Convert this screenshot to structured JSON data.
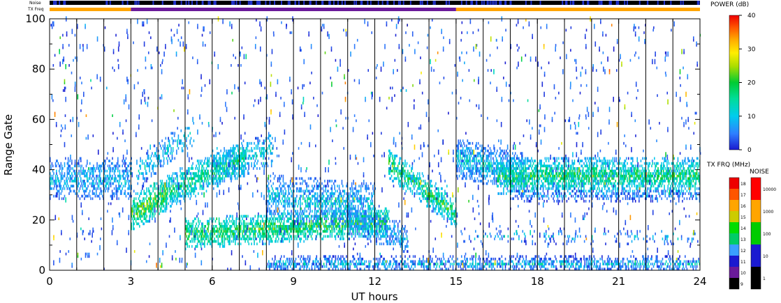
{
  "chart_data": {
    "type": "heatmap",
    "title": "",
    "xlabel": "UT hours",
    "ylabel": "Range Gate",
    "xlim": [
      0,
      24
    ],
    "ylim": [
      0,
      100
    ],
    "x_ticks": [
      0,
      3,
      6,
      9,
      12,
      15,
      18,
      21,
      24
    ],
    "y_ticks": [
      0,
      20,
      40,
      60,
      80,
      100
    ],
    "hour_lines": [
      1,
      2,
      3,
      4,
      5,
      6,
      7,
      8,
      9,
      10,
      11,
      12,
      13,
      14,
      15,
      16,
      17,
      18,
      19,
      20,
      21,
      22,
      23
    ],
    "header": {
      "noise_label": "Noise",
      "txfreq_label": "TX Freq",
      "txfreq_segments": [
        {
          "start": 0,
          "end": 3,
          "color": "#ffa500"
        },
        {
          "start": 3,
          "end": 15,
          "color": "#6a1b9a"
        },
        {
          "start": 15,
          "end": 24,
          "color": "#ffa500"
        }
      ]
    },
    "power_scale": {
      "label": "POWER (dB)",
      "ticks": [
        0,
        10,
        20,
        30,
        40
      ],
      "min": 0,
      "max": 40
    },
    "txfreq_scale": {
      "label": "TX FRQ (MHz)",
      "ticks": [
        9,
        10,
        11,
        12,
        13,
        14,
        15,
        16,
        17,
        18
      ],
      "colors": [
        "#000000",
        "#6a1b9a",
        "#1a1ad0",
        "#3aa0ff",
        "#00cc66",
        "#00dd00",
        "#cccc00",
        "#ffa500",
        "#ff5500",
        "#ee0000"
      ]
    },
    "noise_scale": {
      "label": "NOISE",
      "ticks": [
        "1",
        "10",
        "100",
        "1000",
        "10000"
      ],
      "colors": [
        "#000000",
        "#1a1ad0",
        "#00cc00",
        "#ffa500",
        "#ff0000"
      ]
    },
    "echo_bands": [
      {
        "t0": 0.0,
        "t1": 3.0,
        "g0": 36,
        "g1": 36,
        "w": 8,
        "d": 0.55,
        "p0": 2,
        "p1": 12
      },
      {
        "t0": 3.0,
        "t1": 4.3,
        "g0": 22,
        "g1": 30,
        "w": 7,
        "d": 0.8,
        "p0": 8,
        "p1": 28
      },
      {
        "t0": 4.3,
        "t1": 7.2,
        "g0": 31,
        "g1": 44,
        "w": 7,
        "d": 0.7,
        "p0": 6,
        "p1": 20
      },
      {
        "t0": 3.2,
        "t1": 5.3,
        "g0": 38,
        "g1": 55,
        "w": 6,
        "d": 0.35,
        "p0": 3,
        "p1": 14
      },
      {
        "t0": 6.0,
        "t1": 8.2,
        "g0": 40,
        "g1": 48,
        "w": 7,
        "d": 0.4,
        "p0": 4,
        "p1": 14
      },
      {
        "t0": 5.0,
        "t1": 12.5,
        "g0": 14,
        "g1": 19,
        "w": 6,
        "d": 0.75,
        "p0": 8,
        "p1": 24
      },
      {
        "t0": 8.0,
        "t1": 12.0,
        "g0": 29,
        "g1": 25,
        "w": 9,
        "d": 0.5,
        "p0": 2,
        "p1": 14
      },
      {
        "t0": 11.0,
        "t1": 13.2,
        "g0": 20,
        "g1": 12,
        "w": 6,
        "d": 0.5,
        "p0": 2,
        "p1": 12
      },
      {
        "t0": 12.5,
        "t1": 15.0,
        "g0": 42,
        "g1": 22,
        "w": 6,
        "d": 0.7,
        "p0": 6,
        "p1": 24
      },
      {
        "t0": 15.0,
        "t1": 17.5,
        "g0": 44,
        "g1": 38,
        "w": 8,
        "d": 0.65,
        "p0": 2,
        "p1": 14
      },
      {
        "t0": 16.5,
        "t1": 24.0,
        "g0": 37,
        "g1": 37,
        "w": 7,
        "d": 0.75,
        "p0": 6,
        "p1": 22
      },
      {
        "t0": 17.0,
        "t1": 24.0,
        "g0": 29,
        "g1": 29,
        "w": 2,
        "d": 0.45,
        "p0": 0,
        "p1": 8
      },
      {
        "t0": 8.0,
        "t1": 24.0,
        "g0": 2,
        "g1": 2,
        "w": 3,
        "d": 0.55,
        "p0": 0,
        "p1": 14
      },
      {
        "t0": 15.0,
        "t1": 24.0,
        "g0": 13,
        "g1": 13,
        "w": 3,
        "d": 0.12,
        "p0": 0,
        "p1": 14
      }
    ]
  }
}
